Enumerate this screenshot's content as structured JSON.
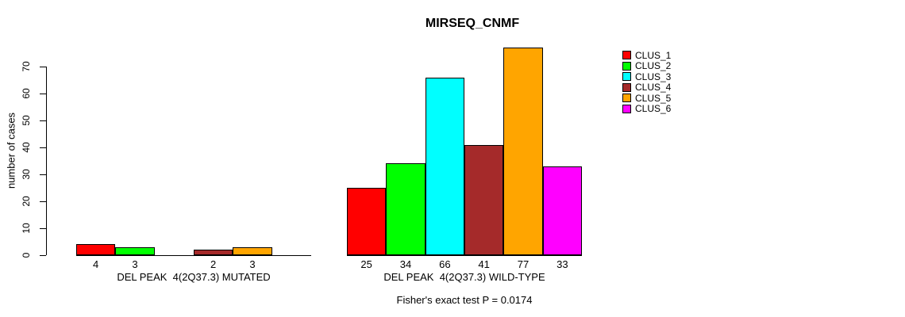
{
  "title": "MIRSEQ_CNMF",
  "y_axis": {
    "label": "number of cases",
    "ticks": [
      0,
      10,
      20,
      30,
      40,
      50,
      60,
      70
    ]
  },
  "legend": {
    "items": [
      {
        "label": "CLUS_1",
        "color": "#FF0000"
      },
      {
        "label": "CLUS_2",
        "color": "#00FF00"
      },
      {
        "label": "CLUS_3",
        "color": "#00FFFF"
      },
      {
        "label": "CLUS_4",
        "color": "#A52A2A"
      },
      {
        "label": "CLUS_5",
        "color": "#FFA500"
      },
      {
        "label": "CLUS_6",
        "color": "#FF00FF"
      }
    ]
  },
  "annotation": "Fisher's exact test P = 0.0174",
  "chart_data": {
    "type": "bar",
    "title": "MIRSEQ_CNMF",
    "xlabel": "",
    "ylabel": "number of cases",
    "ylim": [
      0,
      70
    ],
    "yticks": [
      0,
      10,
      20,
      30,
      40,
      50,
      60,
      70
    ],
    "grid": false,
    "legend_position": "right",
    "clusters": [
      "CLUS_1",
      "CLUS_2",
      "CLUS_3",
      "CLUS_4",
      "CLUS_5",
      "CLUS_6"
    ],
    "colors": [
      "#FF0000",
      "#00FF00",
      "#00FFFF",
      "#A52A2A",
      "#FFA500",
      "#FF00FF"
    ],
    "groups": [
      {
        "label": "DEL PEAK  4(2Q37.3) MUTATED",
        "values": [
          4,
          3,
          0,
          2,
          3,
          0
        ]
      },
      {
        "label": "DEL PEAK  4(2Q37.3) WILD-TYPE",
        "values": [
          25,
          34,
          66,
          41,
          77,
          33
        ]
      }
    ],
    "bar_value_labels": "shown under each nonzero bar",
    "annotation": "Fisher's exact test P = 0.0174"
  }
}
